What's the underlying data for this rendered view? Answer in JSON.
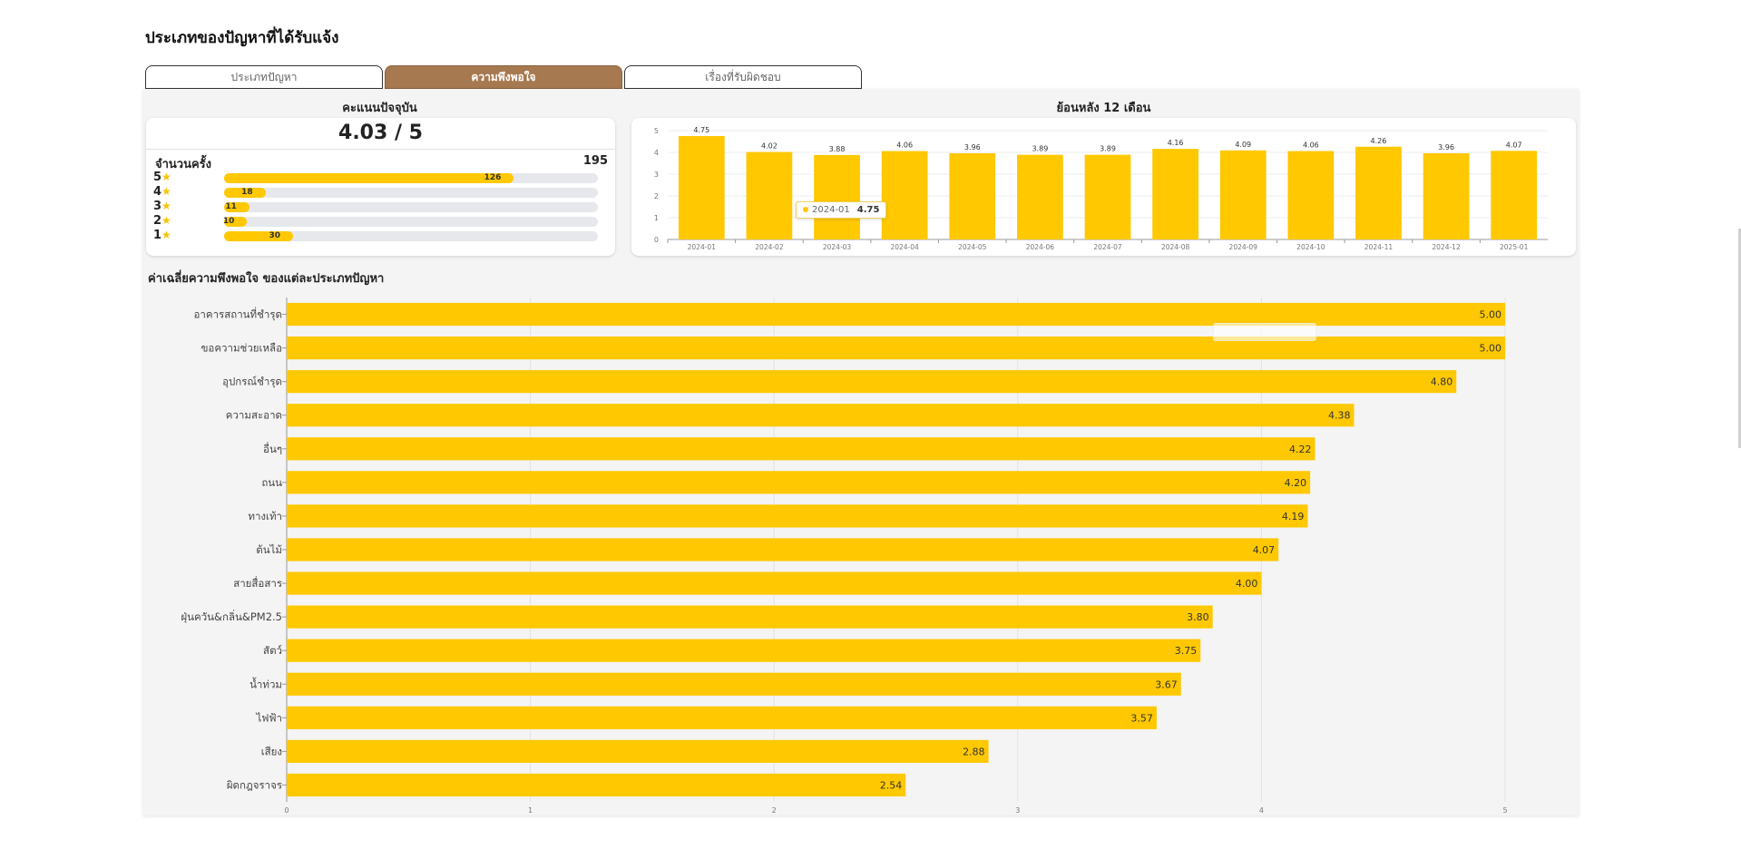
{
  "page": {
    "title": "ประเภทของปัญหาที่ได้รับแจ้ง"
  },
  "tabs": [
    {
      "label": "ประเภทปัญหา",
      "active": false
    },
    {
      "label": "ความพึงพอใจ",
      "active": true
    },
    {
      "label": "เรื่องที่รับผิดชอบ",
      "active": false
    }
  ],
  "current_score": {
    "title": "คะแนนปัจจุบัน",
    "score_text": "4.03 / 5",
    "count_label": "จำนวนครั้ง",
    "count_value": "195",
    "ratings": [
      {
        "stars": "5",
        "count": 126
      },
      {
        "stars": "4",
        "count": 18
      },
      {
        "stars": "3",
        "count": 11
      },
      {
        "stars": "2",
        "count": 10
      },
      {
        "stars": "1",
        "count": 30
      }
    ]
  },
  "tooltip": {
    "label": "2024-01",
    "value": "4.75"
  },
  "chart_data": [
    {
      "type": "bar",
      "title": "ย้อนหลัง 12 เดือน",
      "categories": [
        "2024-01",
        "2024-02",
        "2024-03",
        "2024-04",
        "2024-05",
        "2024-06",
        "2024-07",
        "2024-08",
        "2024-09",
        "2024-10",
        "2024-11",
        "2024-12",
        "2025-01"
      ],
      "values": [
        4.75,
        4.02,
        3.88,
        4.06,
        3.96,
        3.89,
        3.89,
        4.16,
        4.09,
        4.06,
        4.26,
        3.96,
        4.07
      ],
      "ylim": [
        0,
        5
      ],
      "yticks": [
        0,
        1,
        2,
        3,
        4,
        5
      ],
      "color": "#ffc800",
      "grid": true
    },
    {
      "type": "bar",
      "orientation": "horizontal",
      "title": "ค่าเฉลี่ยความพึงพอใจ ของแต่ละประเภทปัญหา",
      "categories": [
        "อาคารสถานที่ชำรุด",
        "ขอความช่วยเหลือ",
        "อุปกรณ์ชำรุด",
        "ความสะอาด",
        "อื่นๆ",
        "ถนน",
        "ทางเท้า",
        "ต้นไม้",
        "สายสื่อสาร",
        "ฝุ่นควัน&กลิ่น&PM2.5",
        "สัตว์",
        "น้ำท่วม",
        "ไฟฟ้า",
        "เสียง",
        "ผิดกฎจราจร"
      ],
      "values": [
        5.0,
        5.0,
        4.8,
        4.38,
        4.22,
        4.2,
        4.19,
        4.07,
        4.0,
        3.8,
        3.75,
        3.67,
        3.57,
        2.88,
        2.54
      ],
      "value_labels": [
        "5.00",
        "5.00",
        "4.80",
        "4.38",
        "4.22",
        "4.20",
        "4.19",
        "4.07",
        "4.00",
        "3.80",
        "3.75",
        "3.67",
        "3.57",
        "2.88",
        "2.54"
      ],
      "xlim": [
        0,
        5
      ],
      "xticks": [
        0,
        1,
        2,
        3,
        4,
        5
      ],
      "color": "#ffc800",
      "grid": true
    }
  ]
}
